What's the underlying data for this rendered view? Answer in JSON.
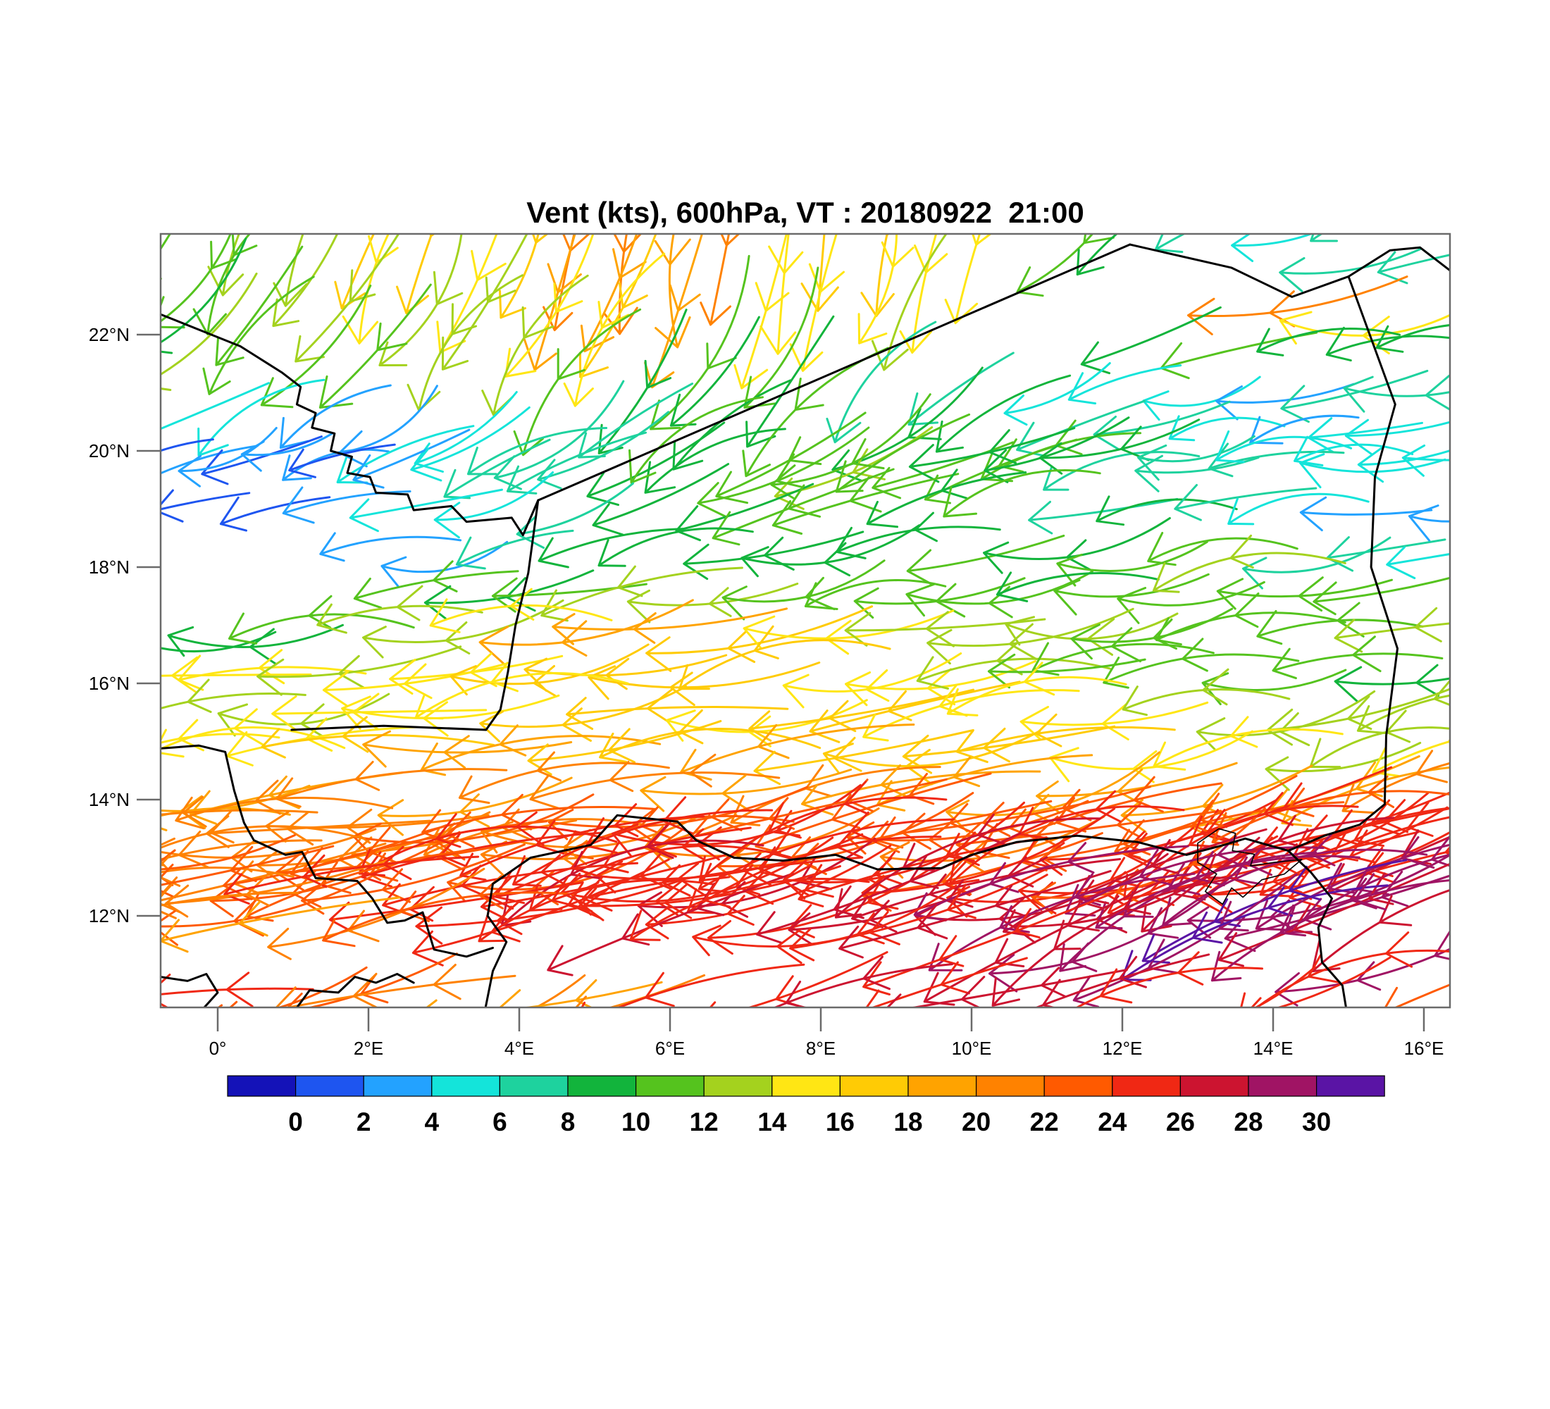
{
  "chart_data": {
    "type": "scatter",
    "subtype": "wind-vector-field-map",
    "title": "Vent (kts), 600hPa, VT : 20180922  21:00",
    "variable": "Vent",
    "units": "kts",
    "level": "600hPa",
    "valid_time": "20180922  21:00",
    "grid": false,
    "x_axis": {
      "tick_labels": [
        "0°",
        "2°E",
        "4°E",
        "6°E",
        "8°E",
        "10°E",
        "12°E",
        "14°E",
        "16°E"
      ],
      "tick_lons": [
        0,
        2,
        4,
        6,
        8,
        10,
        12,
        14,
        16
      ],
      "range": [
        -0.76,
        16.35
      ]
    },
    "y_axis": {
      "tick_labels": [
        "22°N",
        "20°N",
        "18°N",
        "16°N",
        "14°N",
        "12°N"
      ],
      "tick_lats": [
        22,
        20,
        18,
        16,
        14,
        12
      ],
      "range": [
        10.42,
        23.73
      ]
    },
    "colorbar": {
      "position": "bottom",
      "levels": [
        0,
        2,
        4,
        6,
        8,
        10,
        12,
        14,
        16,
        18,
        20,
        22,
        24,
        26,
        28,
        30
      ],
      "tick_labels": [
        "0",
        "2",
        "4",
        "6",
        "8",
        "10",
        "12",
        "14",
        "16",
        "18",
        "20",
        "22",
        "24",
        "26",
        "28",
        "30"
      ],
      "colors": [
        "#1412B8",
        "#1E55F0",
        "#23A2FF",
        "#14E4DA",
        "#1ED29E",
        "#12B43C",
        "#55C31E",
        "#A4D21E",
        "#FFE614",
        "#FFCB05",
        "#FFA300",
        "#FF8200",
        "#FF5A00",
        "#F02814",
        "#CC1430",
        "#A01464",
        "#5A14A5"
      ]
    },
    "wind_rows": [
      {
        "lat": 23.85,
        "speeds": [
          12,
          16,
          18,
          23,
          17,
          17,
          8,
          7,
          7
        ],
        "dirs": [
          208,
          202,
          196,
          190,
          188,
          196,
          235,
          252,
          258
        ]
      },
      {
        "lat": 23.25,
        "speeds": [
          10,
          14,
          17,
          20,
          15,
          16,
          null,
          8,
          7
        ],
        "dirs": [
          212,
          207,
          200,
          194,
          190,
          202,
          240,
          254,
          259
        ]
      },
      {
        "lat": 22.55,
        "speeds": [
          9,
          12,
          15,
          18,
          14,
          12,
          null,
          22,
          8
        ],
        "dirs": [
          218,
          213,
          207,
          200,
          196,
          212,
          244,
          256,
          260
        ]
      },
      {
        "lat": 21.85,
        "speeds": [
          13,
          10,
          14,
          13,
          10,
          null,
          8,
          10,
          8
        ],
        "dirs": [
          224,
          220,
          214,
          208,
          204,
          222,
          248,
          258,
          261
        ]
      },
      {
        "lat": 21.15,
        "speeds": [
          4,
          null,
          12,
          9,
          8,
          6,
          5,
          4,
          7
        ],
        "dirs": [
          232,
          228,
          222,
          216,
          212,
          232,
          252,
          260,
          262
        ]
      },
      {
        "lat": 20.45,
        "speeds": [
          5,
          3,
          6,
          9,
          10,
          8,
          6,
          4,
          5
        ],
        "dirs": [
          243,
          240,
          236,
          230,
          228,
          242,
          256,
          262,
          263
        ]
      },
      {
        "lat": 19.75,
        "speeds": [
          2,
          3,
          7,
          10,
          12,
          10,
          8,
          6,
          5
        ],
        "dirs": [
          252,
          250,
          246,
          242,
          240,
          250,
          260,
          263,
          264
        ],
        "passes": 2
      },
      {
        "lat": 19.05,
        "speeds": [
          2,
          2,
          6,
          9,
          11,
          10,
          8,
          5,
          4
        ],
        "dirs": [
          258,
          256,
          253,
          250,
          249,
          255,
          262,
          264,
          264
        ]
      },
      {
        "lat": 18.35,
        "speeds": [
          null,
          3,
          7,
          9,
          10,
          9,
          11,
          9,
          6
        ],
        "dirs": [
          262,
          261,
          259,
          257,
          256,
          259,
          263,
          264,
          264
        ]
      },
      {
        "lat": 17.65,
        "speeds": [
          null,
          9,
          10,
          13,
          11,
          10,
          11,
          12,
          10
        ],
        "dirs": [
          265,
          264,
          263,
          262,
          261,
          262,
          264,
          264,
          264
        ]
      },
      {
        "lat": 16.95,
        "speeds": [
          9,
          11,
          17,
          19,
          17,
          13,
          12,
          10,
          12
        ],
        "dirs": [
          266,
          266,
          265,
          264,
          263,
          263,
          264,
          263,
          263
        ]
      },
      {
        "lat": 16.25,
        "speeds": [
          15,
          14,
          16,
          18,
          16,
          14,
          12,
          11,
          10
        ],
        "dirs": [
          266,
          266,
          265,
          264,
          264,
          263,
          263,
          262,
          262
        ]
      },
      {
        "lat": 15.55,
        "speeds": [
          14,
          15,
          16,
          16,
          17,
          16,
          14,
          13,
          12
        ],
        "dirs": [
          266,
          265,
          265,
          264,
          263,
          262,
          262,
          261,
          261
        ]
      },
      {
        "lat": 14.85,
        "speeds": [
          16,
          17,
          18,
          18,
          18,
          17,
          16,
          14,
          13
        ],
        "dirs": [
          265,
          265,
          264,
          263,
          262,
          261,
          261,
          260,
          260
        ]
      },
      {
        "lat": 14.15,
        "speeds": [
          18,
          19,
          20,
          20,
          20,
          19,
          18,
          17,
          20
        ],
        "dirs": [
          264,
          263,
          263,
          262,
          261,
          260,
          259,
          258,
          258
        ]
      },
      {
        "lat": 13.45,
        "speeds": [
          20,
          21,
          22,
          23,
          23,
          22,
          23,
          24,
          25
        ],
        "dirs": [
          263,
          262,
          261,
          260,
          259,
          258,
          257,
          256,
          255
        ],
        "passes": 2
      },
      {
        "lat": 12.85,
        "speeds": [
          22,
          23,
          24,
          25,
          25,
          25,
          24,
          25,
          26
        ],
        "dirs": [
          261,
          260,
          259,
          258,
          257,
          256,
          255,
          254,
          252
        ],
        "passes": 2
      },
      {
        "lat": 12.35,
        "speeds": [
          22,
          24,
          25,
          26,
          26,
          27,
          28,
          29,
          28
        ],
        "dirs": [
          259,
          258,
          257,
          256,
          255,
          254,
          252,
          250,
          248
        ],
        "passes": 2
      },
      {
        "lat": 11.95,
        "speeds": [
          20,
          22,
          24,
          26,
          26,
          27,
          29,
          30,
          26
        ],
        "dirs": [
          257,
          256,
          255,
          254,
          253,
          251,
          249,
          247,
          246
        ]
      },
      {
        "lat": 11.55,
        "speeds": [
          null,
          null,
          null,
          null,
          null,
          26,
          28,
          30,
          28
        ],
        "dirs": [
          255,
          254,
          253,
          252,
          251,
          249,
          247,
          245,
          244
        ]
      },
      {
        "lat": 10.55,
        "speeds": [
          24,
          22,
          20,
          24,
          26,
          28,
          26,
          24,
          25
        ],
        "dirs": [
          262,
          260,
          258,
          257,
          256,
          255,
          254,
          253,
          252
        ]
      }
    ],
    "map": {
      "border_color": "#000000",
      "frame_color": "#6a6a6a",
      "borders": [
        {
          "width": 3,
          "points": [
            [
              -0.76,
              22.35
            ],
            [
              0.3,
              21.8
            ],
            [
              0.85,
              21.35
            ],
            [
              1.1,
              21.1
            ],
            [
              1.05,
              20.8
            ],
            [
              1.3,
              20.65
            ],
            [
              1.25,
              20.4
            ],
            [
              1.55,
              20.3
            ],
            [
              1.5,
              20.0
            ],
            [
              1.78,
              19.9
            ],
            [
              1.72,
              19.62
            ],
            [
              2.02,
              19.55
            ],
            [
              2.1,
              19.28
            ],
            [
              2.52,
              19.25
            ],
            [
              2.6,
              18.98
            ],
            [
              3.1,
              19.05
            ],
            [
              3.3,
              18.78
            ],
            [
              3.9,
              18.85
            ],
            [
              4.05,
              18.55
            ],
            [
              4.25,
              19.15
            ]
          ]
        },
        {
          "width": 3,
          "points": [
            [
              4.25,
              19.15
            ],
            [
              12.1,
              23.55
            ]
          ]
        },
        {
          "width": 3,
          "points": [
            [
              12.1,
              23.55
            ],
            [
              13.45,
              23.15
            ],
            [
              14.25,
              22.65
            ],
            [
              15.0,
              23.0
            ],
            [
              15.55,
              23.45
            ],
            [
              15.95,
              23.5
            ],
            [
              16.35,
              23.1
            ]
          ]
        },
        {
          "width": 3,
          "points": [
            [
              15.0,
              23.0
            ],
            [
              15.62,
              20.8
            ],
            [
              15.35,
              19.55
            ],
            [
              15.3,
              18.0
            ],
            [
              15.65,
              16.6
            ],
            [
              15.5,
              15.1
            ],
            [
              15.48,
              13.92
            ],
            [
              15.15,
              13.57
            ],
            [
              14.68,
              13.38
            ],
            [
              14.2,
              13.12
            ]
          ]
        },
        {
          "width": 3,
          "points": [
            [
              3.65,
              12.55
            ],
            [
              4.15,
              13.0
            ],
            [
              4.95,
              13.22
            ],
            [
              5.3,
              13.73
            ],
            [
              6.1,
              13.62
            ],
            [
              6.35,
              13.3
            ],
            [
              6.85,
              13.0
            ],
            [
              7.5,
              12.95
            ],
            [
              8.2,
              13.05
            ],
            [
              8.75,
              12.8
            ],
            [
              9.6,
              12.82
            ],
            [
              10.0,
              13.05
            ],
            [
              10.6,
              13.27
            ],
            [
              11.4,
              13.38
            ],
            [
              12.2,
              13.27
            ],
            [
              12.85,
              13.05
            ],
            [
              13.35,
              13.22
            ],
            [
              13.63,
              13.33
            ],
            [
              14.2,
              13.12
            ]
          ]
        },
        {
          "width": 3,
          "points": [
            [
              14.2,
              13.12
            ],
            [
              14.5,
              12.75
            ],
            [
              14.78,
              12.3
            ],
            [
              14.6,
              11.8
            ],
            [
              14.65,
              11.2
            ],
            [
              14.92,
              10.8
            ],
            [
              14.97,
              10.4
            ]
          ]
        },
        {
          "width": 3,
          "points": [
            [
              3.65,
              12.55
            ],
            [
              3.58,
              12.0
            ],
            [
              3.83,
              11.55
            ],
            [
              3.65,
              11.05
            ],
            [
              3.55,
              10.4
            ]
          ]
        },
        {
          "width": 3,
          "points": [
            [
              -0.76,
              14.88
            ],
            [
              -0.25,
              14.93
            ],
            [
              0.1,
              14.82
            ],
            [
              0.22,
              14.15
            ],
            [
              0.35,
              13.6
            ],
            [
              0.48,
              13.3
            ],
            [
              0.9,
              13.05
            ],
            [
              1.12,
              13.1
            ],
            [
              1.3,
              12.65
            ],
            [
              1.85,
              12.6
            ],
            [
              2.05,
              12.3
            ],
            [
              2.25,
              11.88
            ],
            [
              2.48,
              11.92
            ],
            [
              2.72,
              12.06
            ],
            [
              2.87,
              11.42
            ],
            [
              3.3,
              11.3
            ],
            [
              3.65,
              11.45
            ]
          ]
        },
        {
          "width": 3,
          "points": [
            [
              0.98,
              15.2
            ],
            [
              2.2,
              15.27
            ],
            [
              3.56,
              15.2
            ],
            [
              3.75,
              15.55
            ],
            [
              3.85,
              16.2
            ],
            [
              3.95,
              17.0
            ],
            [
              4.12,
              17.9
            ],
            [
              4.25,
              19.15
            ]
          ]
        },
        {
          "width": 3,
          "points": [
            [
              1.05,
              10.42
            ],
            [
              1.22,
              10.72
            ],
            [
              1.6,
              10.68
            ],
            [
              1.82,
              10.95
            ],
            [
              2.1,
              10.85
            ],
            [
              2.38,
              11.0
            ],
            [
              2.6,
              10.85
            ]
          ]
        },
        {
          "width": 3,
          "points": [
            [
              -0.76,
              10.95
            ],
            [
              -0.4,
              10.88
            ],
            [
              -0.15,
              11.0
            ],
            [
              0.0,
              10.68
            ],
            [
              -0.18,
              10.42
            ]
          ]
        },
        {
          "width": 1.6,
          "points": [
            [
              13.0,
              13.25
            ],
            [
              13.28,
              13.5
            ],
            [
              13.5,
              13.42
            ],
            [
              13.46,
              13.12
            ],
            [
              13.75,
              13.06
            ],
            [
              13.7,
              12.86
            ],
            [
              14.02,
              12.92
            ],
            [
              14.38,
              12.97
            ],
            [
              14.15,
              12.72
            ],
            [
              13.85,
              12.62
            ],
            [
              13.6,
              12.32
            ],
            [
              13.45,
              12.48
            ],
            [
              13.33,
              12.2
            ],
            [
              13.1,
              12.42
            ],
            [
              13.25,
              12.72
            ],
            [
              13.0,
              12.92
            ],
            [
              13.0,
              13.25
            ]
          ]
        }
      ]
    }
  }
}
